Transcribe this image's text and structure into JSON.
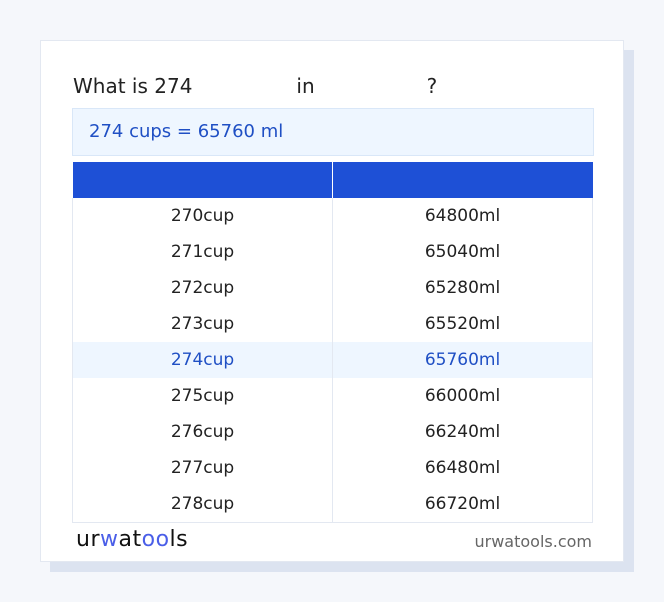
{
  "question": {
    "prefix": "What is 274",
    "middle": "in",
    "suffix": "?"
  },
  "result": "274 cups = 65760 ml",
  "table": {
    "headers": [
      "",
      ""
    ],
    "rows": [
      [
        "270cup",
        "64800ml"
      ],
      [
        "271cup",
        "65040ml"
      ],
      [
        "272cup",
        "65280ml"
      ],
      [
        "273cup",
        "65520ml"
      ],
      [
        "274cup",
        "65760ml"
      ],
      [
        "275cup",
        "66000ml"
      ],
      [
        "276cup",
        "66240ml"
      ],
      [
        "277cup",
        "66480ml"
      ],
      [
        "278cup",
        "66720ml"
      ]
    ],
    "highlighted_row": 4
  },
  "footer": {
    "logo": {
      "part1": "ur",
      "part2": "w",
      "part3": "at",
      "part4": "oo",
      "part5": "ls"
    },
    "site": "urwatools.com"
  },
  "colors": {
    "accent": "#1e50d6",
    "highlight_bg": "#eef6ff",
    "highlight_text": "#1f4fc4"
  }
}
